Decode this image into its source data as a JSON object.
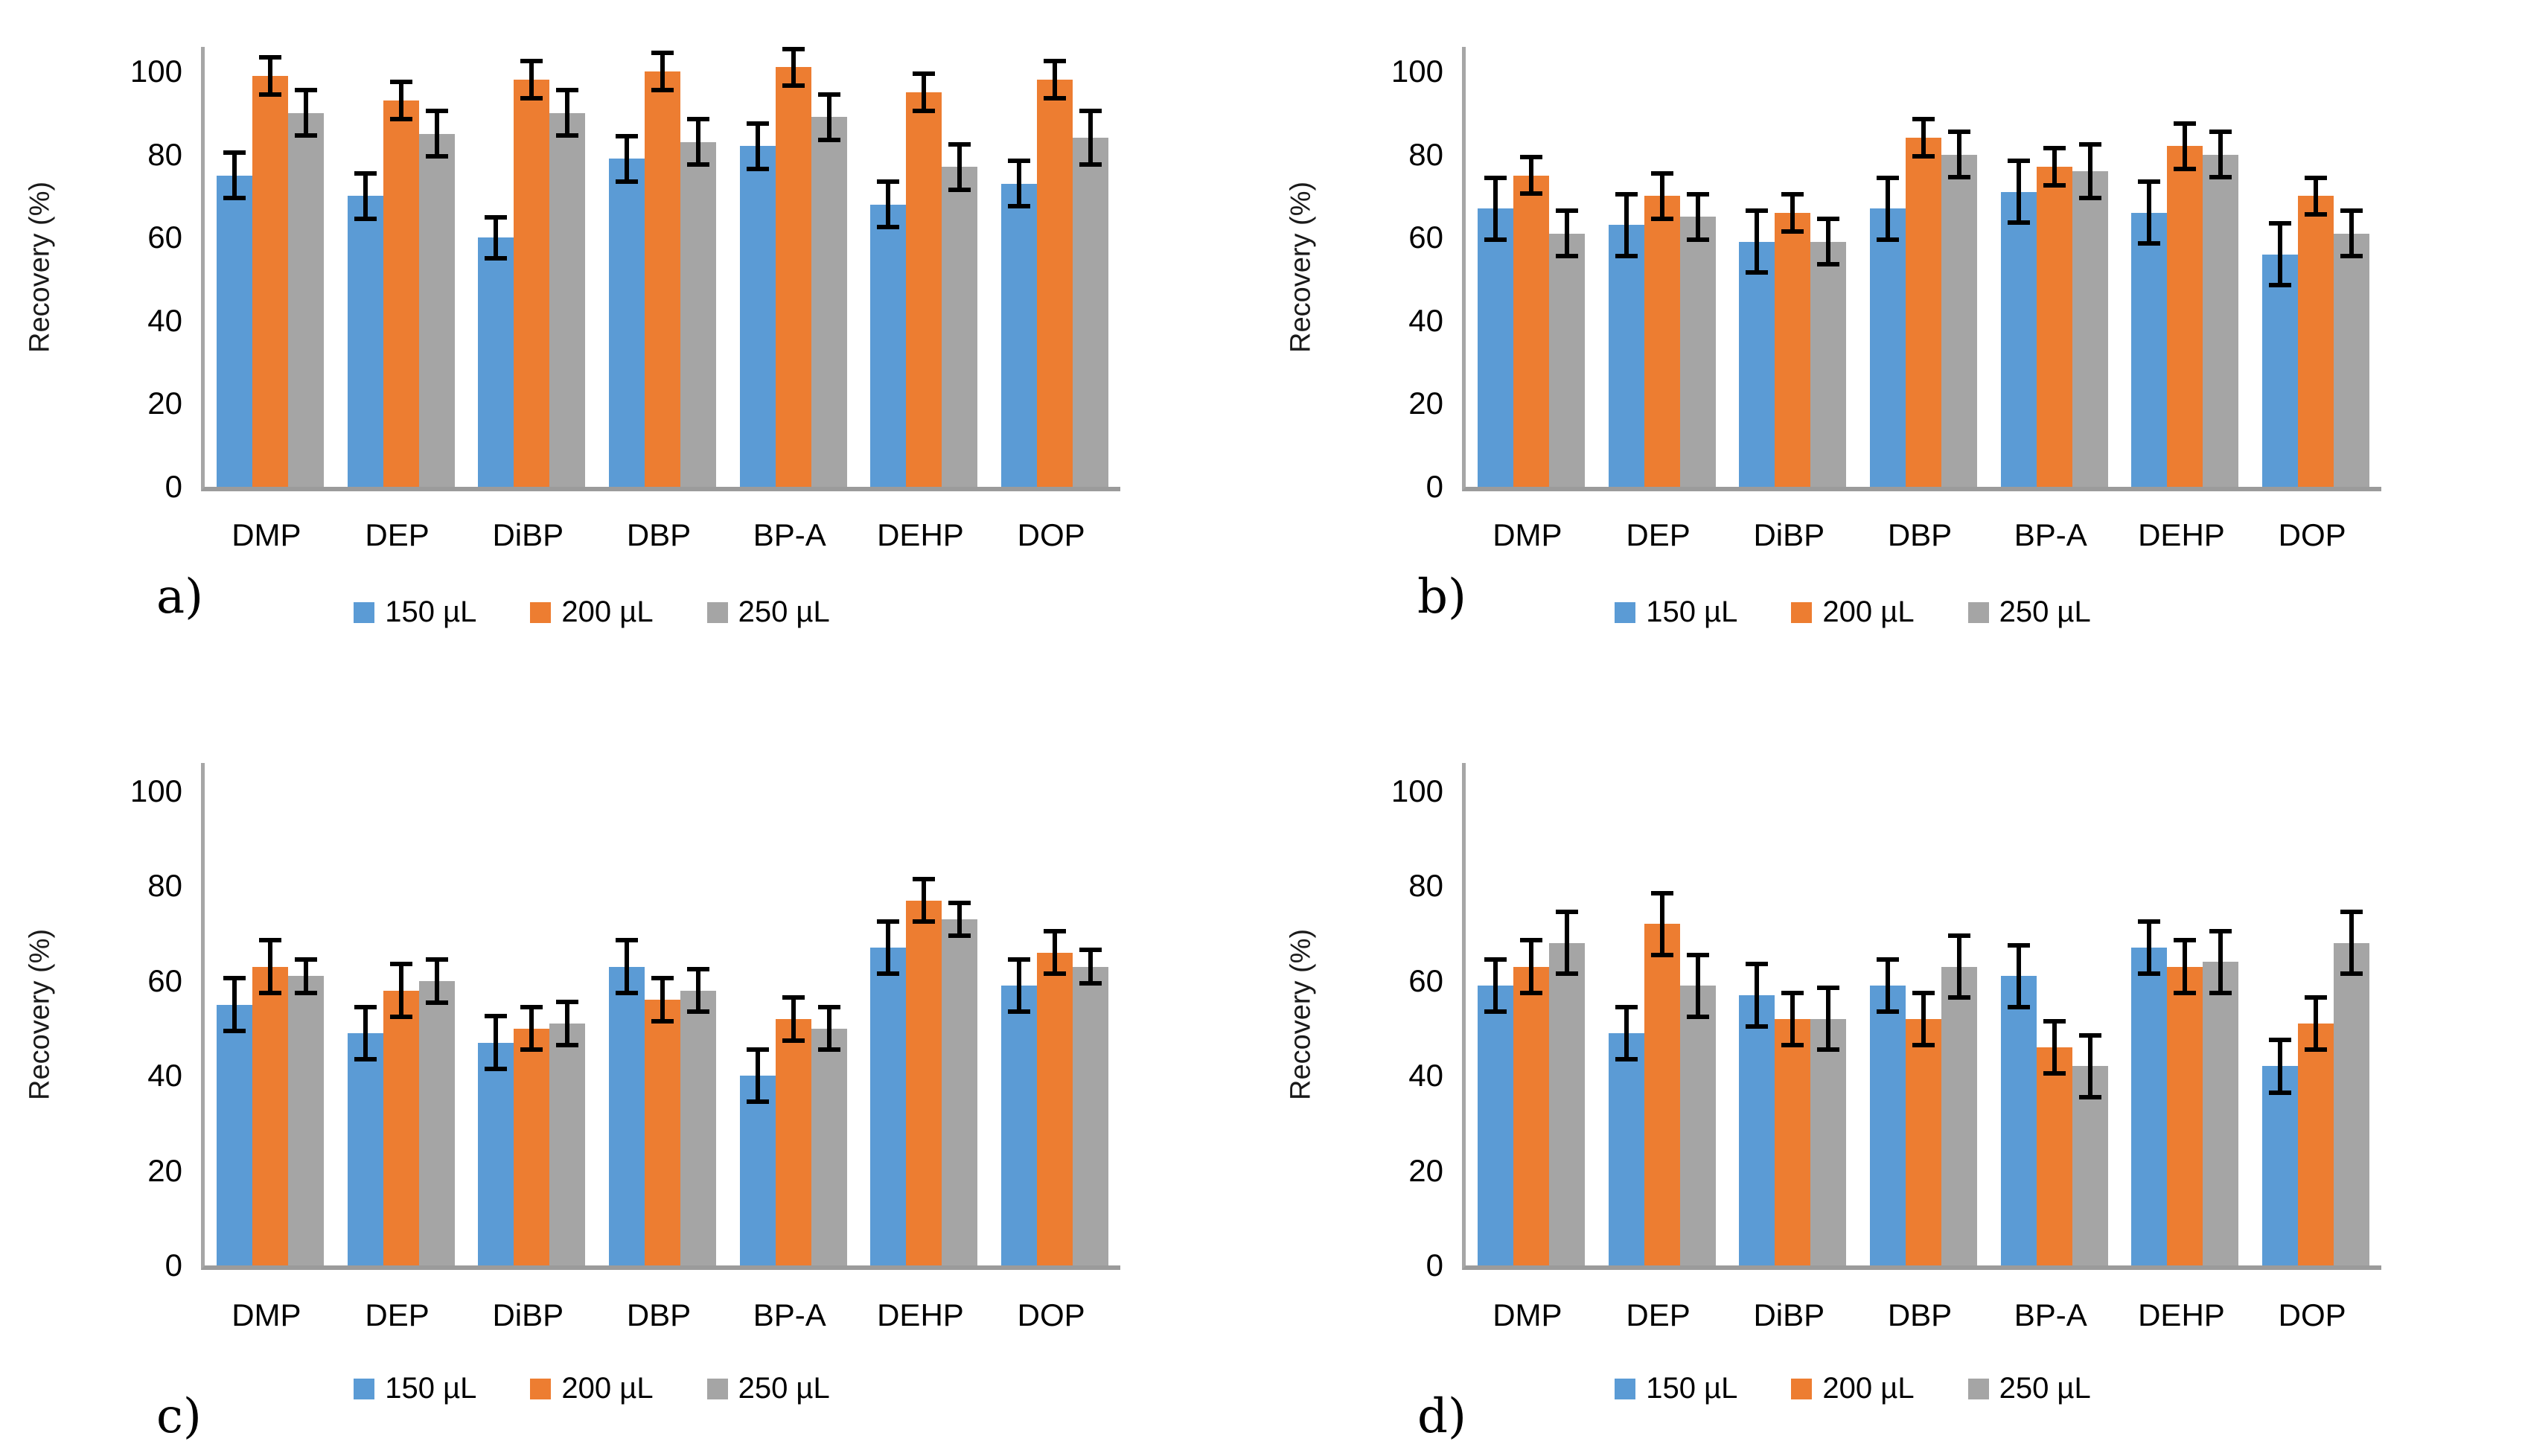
{
  "figure": {
    "background": "#ffffff",
    "axis_color": "#9b9b9b",
    "error_bar_color": "#000000"
  },
  "chart_data": [
    {
      "type": "bar",
      "letter": "a)",
      "ylabel": "Recovery (%)",
      "ylim": [
        0,
        100
      ],
      "yticks": [
        0,
        20,
        40,
        60,
        80,
        100
      ],
      "grid": false,
      "legend_position": "bottom",
      "categories": [
        "DMP",
        "DEP",
        "DiBP",
        "DBP",
        "BP-A",
        "DEHP",
        "DOP"
      ],
      "series": [
        {
          "name": "150 µL",
          "color": "#5B9BD5",
          "values": [
            75,
            70,
            60,
            79,
            82,
            68,
            73
          ],
          "errors": [
            6,
            6,
            5.5,
            6,
            6,
            6,
            6
          ]
        },
        {
          "name": "200 µL",
          "color": "#ED7D31",
          "values": [
            99,
            93,
            98,
            100,
            101,
            95,
            98
          ],
          "errors": [
            5,
            5,
            5,
            5,
            5,
            5,
            5
          ]
        },
        {
          "name": "250 µL",
          "color": "#A5A5A5",
          "values": [
            90,
            85,
            90,
            83,
            89,
            77,
            84
          ],
          "errors": [
            6,
            6,
            6,
            6,
            6,
            6,
            7
          ]
        }
      ]
    },
    {
      "type": "bar",
      "letter": "b)",
      "ylabel": "Recovery (%)",
      "ylim": [
        0,
        100
      ],
      "yticks": [
        0,
        20,
        40,
        60,
        80,
        100
      ],
      "grid": false,
      "legend_position": "bottom",
      "categories": [
        "DMP",
        "DEP",
        "DiBP",
        "DBP",
        "BP-A",
        "DEHP",
        "DOP"
      ],
      "series": [
        {
          "name": "150 µL",
          "color": "#5B9BD5",
          "values": [
            67,
            63,
            59,
            67,
            71,
            66,
            56
          ],
          "errors": [
            8,
            8,
            8,
            8,
            8,
            8,
            8
          ]
        },
        {
          "name": "200 µL",
          "color": "#ED7D31",
          "values": [
            75,
            70,
            66,
            84,
            77,
            82,
            70
          ],
          "errors": [
            5,
            6,
            5,
            5,
            5,
            6,
            5
          ]
        },
        {
          "name": "250 µL",
          "color": "#A5A5A5",
          "values": [
            61,
            65,
            59,
            80,
            76,
            80,
            61
          ],
          "errors": [
            6,
            6,
            6,
            6,
            7,
            6,
            6
          ]
        }
      ]
    },
    {
      "type": "bar",
      "letter": "c)",
      "ylabel": "Recovery (%)",
      "ylim": [
        0,
        100
      ],
      "yticks": [
        0,
        20,
        40,
        60,
        80,
        100
      ],
      "grid": false,
      "legend_position": "bottom",
      "categories": [
        "DMP",
        "DEP",
        "DiBP",
        "DBP",
        "BP-A",
        "DEHP",
        "DOP"
      ],
      "series": [
        {
          "name": "150 µL",
          "color": "#5B9BD5",
          "values": [
            55,
            49,
            47,
            63,
            40,
            67,
            59
          ],
          "errors": [
            6,
            6,
            6,
            6,
            6,
            6,
            6
          ]
        },
        {
          "name": "200 µL",
          "color": "#ED7D31",
          "values": [
            63,
            58,
            50,
            56,
            52,
            77,
            66
          ],
          "errors": [
            6,
            6,
            5,
            5,
            5,
            5,
            5
          ]
        },
        {
          "name": "250 µL",
          "color": "#A5A5A5",
          "values": [
            61,
            60,
            51,
            58,
            50,
            73,
            63
          ],
          "errors": [
            4,
            5,
            5,
            5,
            5,
            4,
            4
          ]
        }
      ]
    },
    {
      "type": "bar",
      "letter": "d)",
      "ylabel": "Recovery (%)",
      "ylim": [
        0,
        100
      ],
      "yticks": [
        0,
        20,
        40,
        60,
        80,
        100
      ],
      "grid": false,
      "legend_position": "bottom",
      "categories": [
        "DMP",
        "DEP",
        "DiBP",
        "DBP",
        "BP-A",
        "DEHP",
        "DOP"
      ],
      "series": [
        {
          "name": "150 µL",
          "color": "#5B9BD5",
          "values": [
            59,
            49,
            57,
            59,
            61,
            67,
            42
          ],
          "errors": [
            6,
            6,
            7,
            6,
            7,
            6,
            6
          ]
        },
        {
          "name": "200 µL",
          "color": "#ED7D31",
          "values": [
            63,
            72,
            52,
            52,
            46,
            63,
            51
          ],
          "errors": [
            6,
            7,
            6,
            6,
            6,
            6,
            6
          ]
        },
        {
          "name": "250 µL",
          "color": "#A5A5A5",
          "values": [
            68,
            59,
            52,
            63,
            42,
            64,
            68
          ],
          "errors": [
            7,
            7,
            7,
            7,
            7,
            7,
            7
          ]
        }
      ]
    }
  ]
}
